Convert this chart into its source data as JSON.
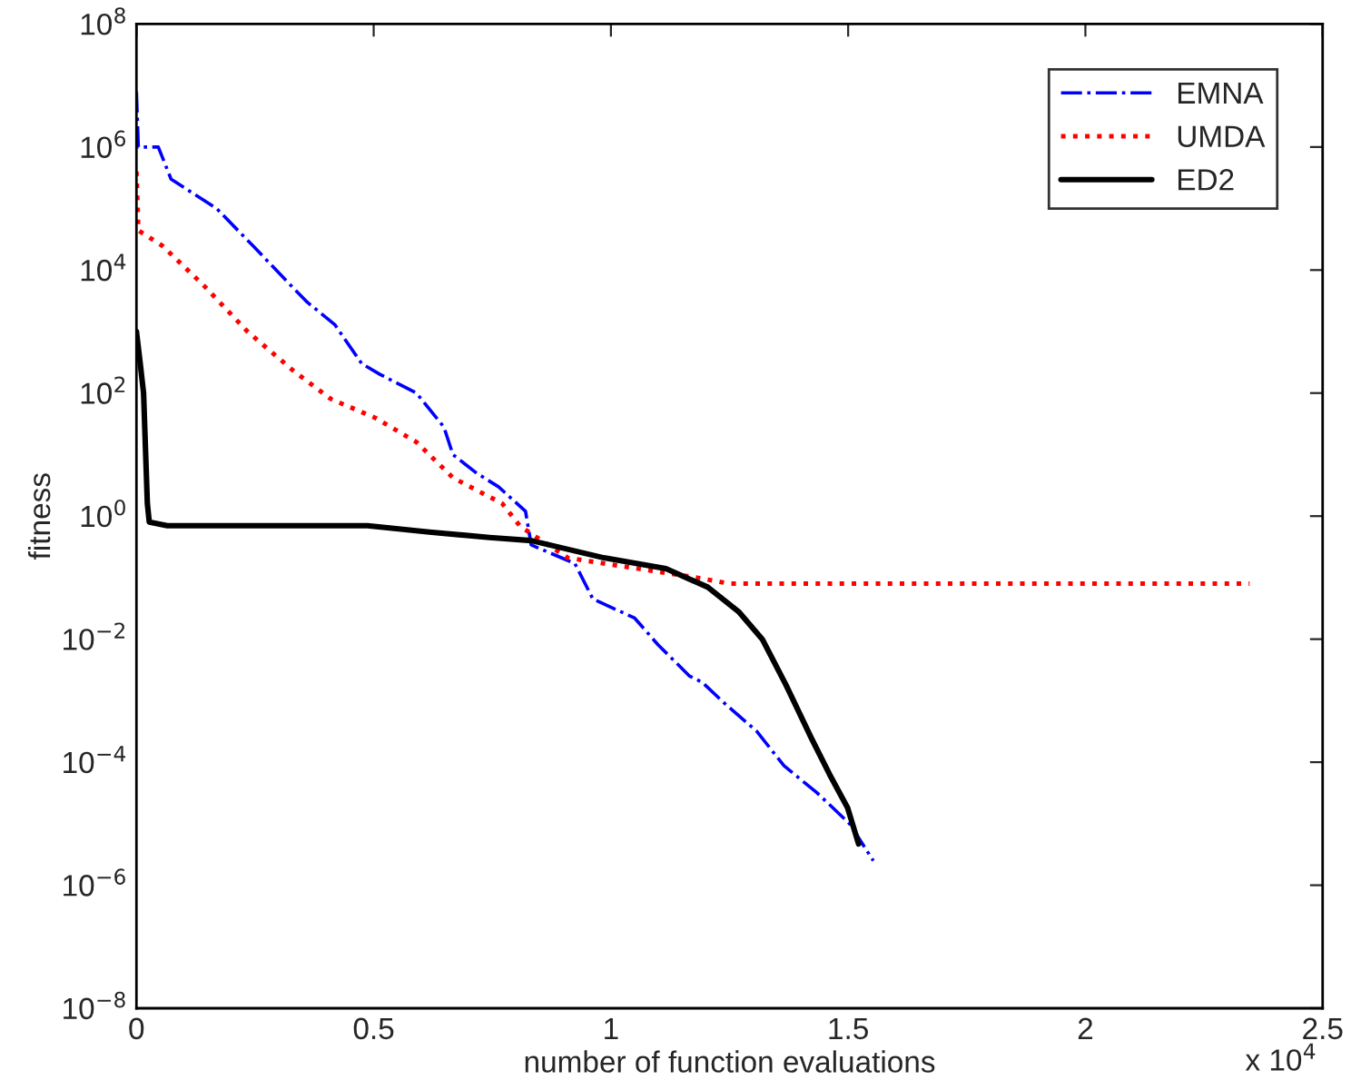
{
  "chart_data": {
    "type": "line",
    "xlabel": "number of function evaluations",
    "ylabel": "fitness",
    "annotations": [
      "x 10$^{4}$"
    ],
    "log": "y",
    "grid": false,
    "legend": "top right",
    "xlim": [
      0,
      2.5
    ],
    "xticks": [
      0,
      0.5,
      1,
      1.5,
      2,
      2.5
    ],
    "ylim": [
      1e-08,
      100000000.0
    ],
    "yticks": [
      {
        "value": 1e-08,
        "label": "10$^{−8}$"
      },
      {
        "value": 1e-06,
        "label": "10$^{−6}$"
      },
      {
        "value": 0.0001,
        "label": "10$^{−4}$"
      },
      {
        "value": 0.01,
        "label": "10$^{−2}$"
      },
      {
        "value": 1,
        "label": "10$^{0}$"
      },
      {
        "value": 100,
        "label": "10$^{2}$"
      },
      {
        "value": 10000.0,
        "label": "10$^{4}$"
      },
      {
        "value": 1000000.0,
        "label": "10$^{6}$"
      },
      {
        "value": 100000000.0,
        "label": "10$^{8}$"
      }
    ],
    "series": [
      {
        "name": "EMNA",
        "color": "#0000ff",
        "line_style": "dashdot",
        "x": [
          0,
          0.004,
          0.046,
          0.073,
          0.169,
          0.245,
          0.322,
          0.36,
          0.418,
          0.475,
          0.514,
          0.59,
          0.648,
          0.667,
          0.717,
          0.763,
          0.82,
          0.832,
          0.924,
          0.962,
          1.05,
          1.1,
          1.166,
          1.192,
          1.242,
          1.307,
          1.365,
          1.434,
          1.503,
          1.553
        ],
        "values": [
          8000000.0,
          1000000.0,
          1000000.0,
          300000.0,
          100000.0,
          25000.0,
          6000.0,
          3000.0,
          1300.0,
          300,
          200,
          100,
          28,
          10,
          5,
          3,
          1.2,
          0.34,
          0.17,
          0.045,
          0.022,
          0.008,
          0.0025,
          0.002,
          0.00087,
          0.00032,
          8.7e-05,
          3.2e-05,
          1e-05,
          2.5e-06
        ]
      },
      {
        "name": "UMDA",
        "color": "#ff0000",
        "line_style": "dotted",
        "x": [
          0,
          0.004,
          0.054,
          0.142,
          0.234,
          0.334,
          0.41,
          0.502,
          0.59,
          0.667,
          0.771,
          0.809,
          0.909,
          1.058,
          1.181,
          1.25,
          2.346
        ],
        "values": [
          400000.0,
          44000.0,
          25000.0,
          5600.0,
          1000.0,
          220,
          80,
          40,
          16,
          4.2,
          1.6,
          0.68,
          0.21,
          0.14,
          0.1,
          0.08,
          0.08
        ]
      },
      {
        "name": "ED2",
        "color": "#000000",
        "line_style": "solid",
        "x": [
          0,
          0.008,
          0.015,
          0.023,
          0.027,
          0.065,
          0.487,
          0.617,
          0.744,
          0.832,
          0.985,
          1.116,
          1.204,
          1.269,
          1.319,
          1.369,
          1.422,
          1.461,
          1.499,
          1.522
        ],
        "values": [
          1000,
          300,
          100,
          1.6,
          0.8,
          0.7,
          0.7,
          0.55,
          0.45,
          0.4,
          0.21,
          0.14,
          0.07,
          0.028,
          0.01,
          0.0018,
          0.00025,
          6.3e-05,
          1.8e-05,
          4.7e-06
        ]
      }
    ]
  }
}
